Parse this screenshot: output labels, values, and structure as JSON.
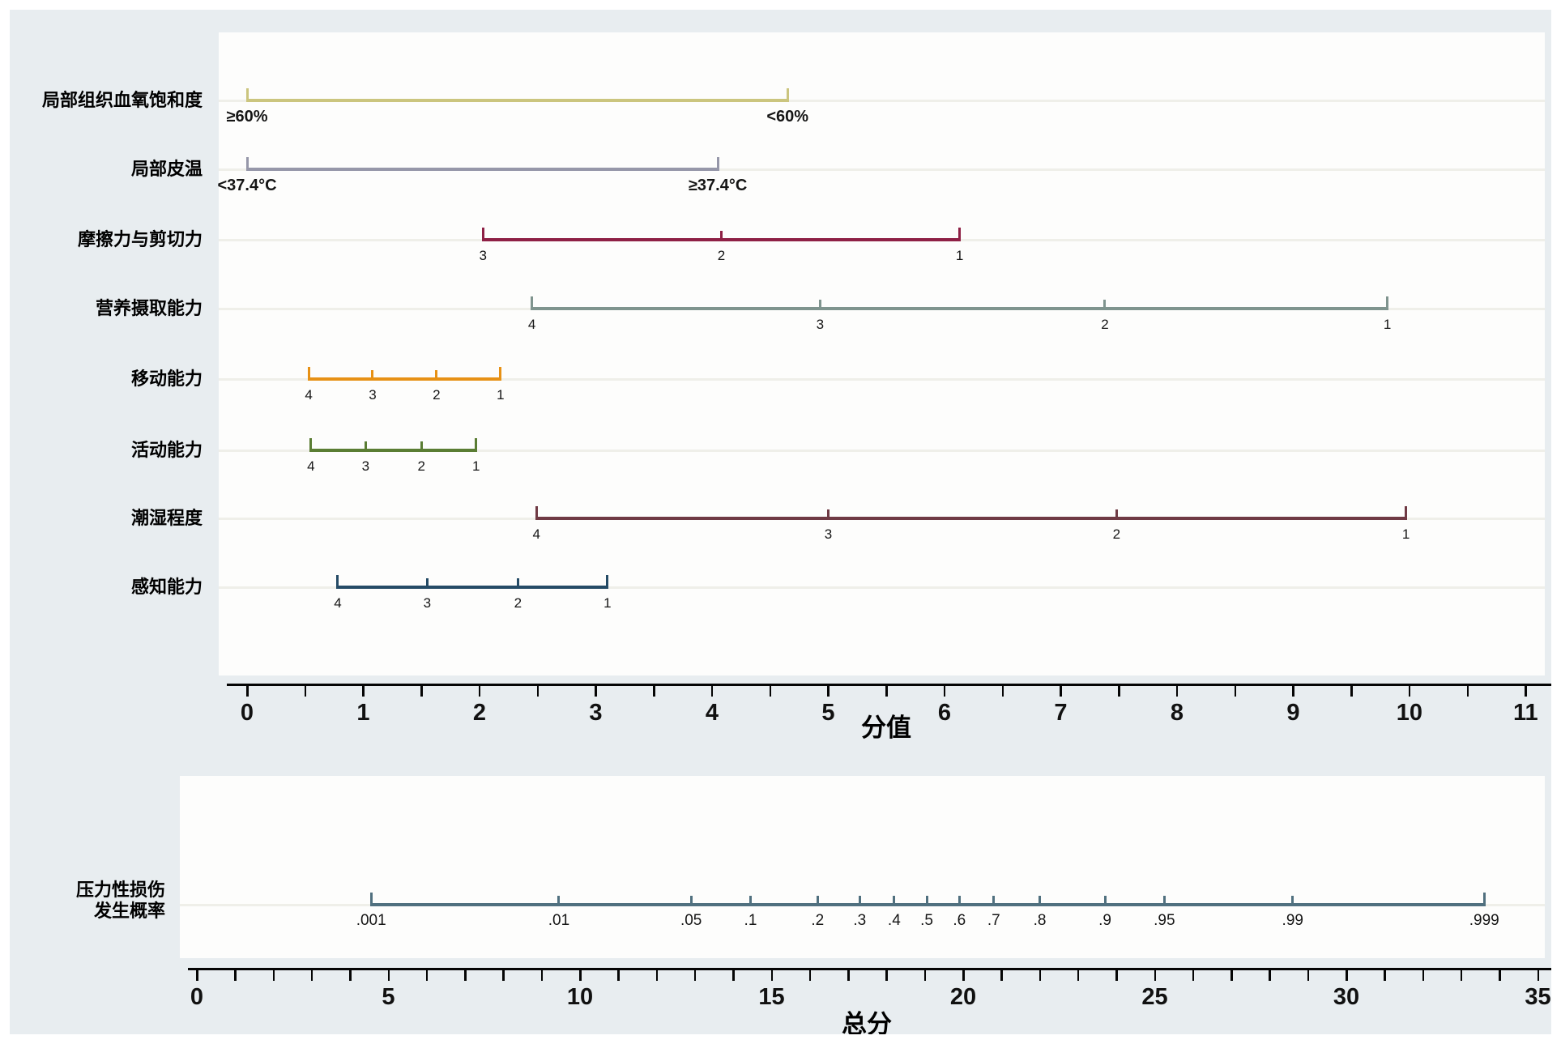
{
  "figure": {
    "background_color": "#e8edf0",
    "panel_color": "#fdfdfc",
    "track_color": "#efefe9",
    "axis_color": "#050505"
  },
  "chart_data": [
    {
      "type": "nomogram_points_panel",
      "xlabel": "分值",
      "xlim": [
        0,
        11
      ],
      "x_major_ticks": [
        0,
        1,
        2,
        3,
        4,
        5,
        6,
        7,
        8,
        9,
        10,
        11
      ],
      "x_minor_step": 0.5,
      "grid": false,
      "rows": [
        {
          "label": "局部组织血氧饱和度",
          "color": "#cbc57e",
          "ticks": [
            {
              "label": "≥60%",
              "value": 0,
              "bold": true
            },
            {
              "label": "<60%",
              "value": 4.65,
              "bold": true
            }
          ]
        },
        {
          "label": "局部皮温",
          "color": "#9697a9",
          "ticks": [
            {
              "label": "<37.4°C",
              "value": 0,
              "bold": true
            },
            {
              "label": "≥37.4°C",
              "value": 4.05,
              "bold": true
            }
          ]
        },
        {
          "label": "摩擦力与剪切力",
          "color": "#8e2045",
          "ticks": [
            {
              "label": "3",
              "value": 2.03
            },
            {
              "label": "2",
              "value": 4.08
            },
            {
              "label": "1",
              "value": 6.13
            }
          ]
        },
        {
          "label": "营养摄取能力",
          "color": "#7f948e",
          "ticks": [
            {
              "label": "4",
              "value": 2.45
            },
            {
              "label": "3",
              "value": 4.93
            },
            {
              "label": "2",
              "value": 7.38
            },
            {
              "label": "1",
              "value": 9.81
            }
          ]
        },
        {
          "label": "移动能力",
          "color": "#e79115",
          "ticks": [
            {
              "label": "4",
              "value": 0.53
            },
            {
              "label": "3",
              "value": 1.08
            },
            {
              "label": "2",
              "value": 1.63
            },
            {
              "label": "1",
              "value": 2.18
            }
          ]
        },
        {
          "label": "活动能力",
          "color": "#5a7d33",
          "ticks": [
            {
              "label": "4",
              "value": 0.55
            },
            {
              "label": "3",
              "value": 1.02
            },
            {
              "label": "2",
              "value": 1.5
            },
            {
              "label": "1",
              "value": 1.97
            }
          ]
        },
        {
          "label": "潮湿程度",
          "color": "#6f3a44",
          "ticks": [
            {
              "label": "4",
              "value": 2.49
            },
            {
              "label": "3",
              "value": 5.0
            },
            {
              "label": "2",
              "value": 7.48
            },
            {
              "label": "1",
              "value": 9.97
            }
          ]
        },
        {
          "label": "感知能力",
          "color": "#254b66",
          "ticks": [
            {
              "label": "4",
              "value": 0.78
            },
            {
              "label": "3",
              "value": 1.55
            },
            {
              "label": "2",
              "value": 2.33
            },
            {
              "label": "1",
              "value": 3.1
            }
          ]
        }
      ]
    },
    {
      "type": "nomogram_probability_panel",
      "xlabel": "总分",
      "xlim": [
        0,
        35
      ],
      "x_major_step": 5,
      "x_minor_step": 1,
      "x_major_ticks": [
        0,
        5,
        10,
        15,
        20,
        25,
        30,
        35
      ],
      "grid": false,
      "row": {
        "label_lines": [
          "压力性损伤",
          "发生概率"
        ],
        "color": "#50707f",
        "ticks": [
          {
            "label": ".001",
            "value": 4.55
          },
          {
            "label": ".01",
            "value": 9.45
          },
          {
            "label": ".05",
            "value": 12.9
          },
          {
            "label": ".1",
            "value": 14.45
          },
          {
            "label": ".2",
            "value": 16.2
          },
          {
            "label": ".3",
            "value": 17.3
          },
          {
            "label": ".4",
            "value": 18.2
          },
          {
            "label": ".5",
            "value": 19.05
          },
          {
            "label": ".6",
            "value": 19.9
          },
          {
            "label": ".7",
            "value": 20.8
          },
          {
            "label": ".8",
            "value": 22.0
          },
          {
            "label": ".9",
            "value": 23.7
          },
          {
            "label": ".95",
            "value": 25.25
          },
          {
            "label": ".99",
            "value": 28.6
          },
          {
            "label": ".999",
            "value": 33.6
          }
        ]
      }
    }
  ]
}
